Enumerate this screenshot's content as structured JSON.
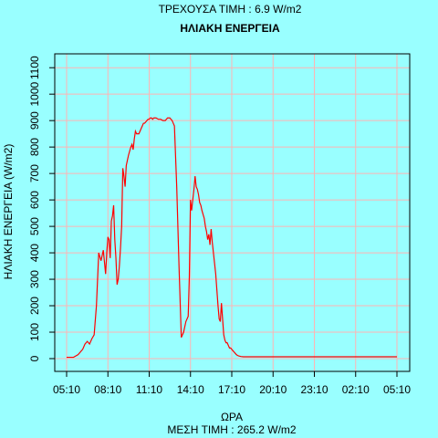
{
  "header": {
    "current_value": "ΤΡΕΧΟΥΣΑ ΤΙΜΗ : 6.9 W/m2"
  },
  "footer": {
    "mean_value": "ΜΕΣΗ ΤΙΜΗ : 265.2 W/m2"
  },
  "colors": {
    "background": "#99ffff",
    "plot_bg": "#99ffff",
    "grid": "#ffb3b3",
    "line": "#ff0000",
    "axis": "#000000"
  },
  "chart_data": {
    "type": "line",
    "title": "ΗΛΙΑΚΗ ΕΝΕΡΓΕΙΑ",
    "xlabel": "ΩΡΑ",
    "ylabel": "ΗΛΙΑΚΗ ΕΝΕΡΓΕΙΑ (W/m2)",
    "xlim": [
      0,
      1440
    ],
    "ylim": [
      -50,
      1150
    ],
    "grid": true,
    "x_ticks": [
      {
        "label": "05:10",
        "x": 0
      },
      {
        "label": "08:10",
        "x": 180
      },
      {
        "label": "11:10",
        "x": 360
      },
      {
        "label": "14:10",
        "x": 540
      },
      {
        "label": "17:10",
        "x": 720
      },
      {
        "label": "20:10",
        "x": 900
      },
      {
        "label": "23:10",
        "x": 1080
      },
      {
        "label": "02:10",
        "x": 1260
      },
      {
        "label": "05:10",
        "x": 1440
      }
    ],
    "y_ticks": [
      0,
      100,
      200,
      300,
      400,
      500,
      600,
      700,
      800,
      900,
      1000,
      1100
    ],
    "series": [
      {
        "x": [
          0,
          30,
          50,
          70,
          80,
          90,
          100,
          110,
          120,
          130,
          140,
          150,
          160,
          170,
          175,
          180,
          185,
          190,
          195,
          200,
          205,
          210,
          215,
          220,
          225,
          230,
          235,
          240,
          245,
          250,
          255,
          260,
          265,
          270,
          280,
          285,
          290,
          295,
          300,
          305,
          310,
          315,
          320,
          325,
          330,
          335,
          340,
          345,
          350,
          355,
          360,
          365,
          370,
          375,
          380,
          390,
          400,
          410,
          420,
          430,
          440,
          450,
          460,
          470,
          480,
          490,
          500,
          510,
          520,
          530,
          535,
          540,
          545,
          550,
          555,
          560,
          565,
          570,
          575,
          580,
          585,
          590,
          595,
          600,
          605,
          610,
          615,
          620,
          625,
          630,
          635,
          640,
          645,
          650,
          655,
          660,
          665,
          670,
          675,
          680,
          685,
          690,
          695,
          700,
          705,
          710,
          715,
          720,
          725,
          730,
          735,
          740,
          745,
          750,
          760,
          770,
          780,
          790,
          800,
          820,
          840,
          900,
          1000,
          1100,
          1200,
          1300,
          1440
        ],
        "y": [
          5,
          5,
          15,
          35,
          55,
          65,
          55,
          75,
          90,
          200,
          400,
          370,
          410,
          320,
          400,
          460,
          450,
          380,
          520,
          540,
          580,
          450,
          380,
          280,
          300,
          350,
          420,
          500,
          720,
          690,
          650,
          730,
          750,
          770,
          800,
          810,
          790,
          830,
          860,
          850,
          850,
          850,
          860,
          870,
          880,
          890,
          890,
          895,
          900,
          905,
          905,
          910,
          910,
          905,
          910,
          910,
          905,
          905,
          900,
          900,
          910,
          910,
          900,
          880,
          650,
          350,
          80,
          100,
          140,
          160,
          310,
          600,
          560,
          600,
          640,
          690,
          650,
          640,
          620,
          590,
          580,
          560,
          545,
          530,
          500,
          480,
          450,
          470,
          430,
          490,
          440,
          400,
          360,
          320,
          260,
          200,
          150,
          140,
          210,
          150,
          90,
          70,
          60,
          60,
          50,
          40,
          40,
          35,
          30,
          25,
          20,
          15,
          12,
          10,
          8,
          7,
          7,
          7,
          7,
          7,
          7,
          7,
          7,
          7,
          7,
          7,
          7
        ]
      }
    ]
  }
}
